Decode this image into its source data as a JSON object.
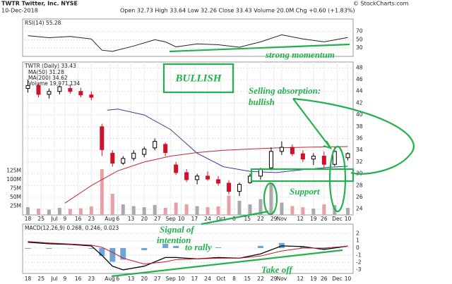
{
  "header": {
    "title": "TWTR Twitter, Inc. NYSE",
    "date": "10-Dec-2018",
    "quote": "Open 32.73 High 33.64 Low 32.26 Close 33.43 Volume 20.0M Chg +0.60 (+1.83%)",
    "credit": "© StockCharts.com"
  },
  "annotations": [
    "BULLISH",
    "Selling absorption:",
    "bullish",
    "strong momentum",
    "Support",
    "Signal of",
    "intention",
    "to rally",
    "Take off"
  ],
  "chart_data": [
    {
      "type": "line",
      "title": "RSI(14) 55.28",
      "color": "#222222",
      "x": [
        0,
        8,
        16,
        24,
        28,
        32,
        40,
        48,
        52,
        56,
        64,
        72,
        80,
        88,
        96,
        104,
        112,
        121
      ],
      "values": [
        60,
        55,
        58,
        52,
        25,
        22,
        35,
        50,
        45,
        33,
        40,
        38,
        32,
        45,
        62,
        52,
        45,
        55.28
      ],
      "xlim": [
        -2,
        123
      ],
      "ylim": [
        10,
        100
      ],
      "yticks": [
        30,
        50,
        70
      ],
      "grid": true
    },
    {
      "type": "candlestick",
      "title": "TWTR (Daily) 33.43",
      "up_color": "#000000",
      "down_color": "#d0112b",
      "x": [
        0,
        4,
        8,
        12,
        16,
        20,
        24,
        28,
        32,
        36,
        40,
        44,
        48,
        52,
        56,
        60,
        64,
        68,
        72,
        76,
        80,
        84,
        88,
        92,
        96,
        100,
        104,
        108,
        112,
        116,
        121
      ],
      "open": [
        44.5,
        45,
        43.5,
        44,
        44.5,
        44,
        43.4,
        38,
        33.5,
        31.8,
        32.6,
        33.3,
        34.4,
        35,
        31.5,
        30.2,
        29,
        29.6,
        29,
        28.4,
        27,
        28.5,
        29.6,
        31,
        33.8,
        34.5,
        33.4,
        32.5,
        33,
        31.6,
        32.73
      ],
      "high": [
        46,
        45.5,
        44.5,
        45,
        45.2,
        44.6,
        44,
        38.5,
        34,
        33,
        34,
        34.6,
        36,
        35.3,
        32,
        30.8,
        30,
        30.4,
        29.6,
        28.9,
        28.5,
        30,
        31,
        34.5,
        35.5,
        35,
        34,
        33.5,
        33.8,
        34.5,
        33.64
      ],
      "low": [
        43.8,
        43,
        42.8,
        43.5,
        43.6,
        43,
        42.5,
        33,
        31.2,
        31.5,
        32.2,
        32.8,
        34,
        33,
        29.8,
        28.6,
        28.2,
        28.8,
        28,
        26.5,
        26.2,
        28.3,
        29,
        30.6,
        33.2,
        33,
        32,
        31.5,
        31,
        31.3,
        32.26
      ],
      "close": [
        45,
        43.5,
        44,
        44.8,
        44,
        43.4,
        43,
        34.1,
        31.8,
        32.6,
        33.5,
        34.2,
        35.5,
        33.6,
        30.2,
        29,
        29.6,
        29.1,
        28.4,
        27,
        28.2,
        29.6,
        30.8,
        33.8,
        34.5,
        33.4,
        32.5,
        33,
        31.6,
        33.8,
        33.43
      ],
      "volume": {
        "name": "Volume 19,971,134",
        "up_color": "#aaaaaa",
        "down_color": "#e8a0a8",
        "values": [
          22,
          18,
          15,
          20,
          17,
          19,
          24,
          130,
          60,
          30,
          25,
          22,
          28,
          20,
          35,
          30,
          25,
          22,
          24,
          55,
          40,
          30,
          45,
          90,
          35,
          25,
          22,
          18,
          30,
          28,
          19.97
        ],
        "ylim": [
          0,
          434
        ],
        "yticks": [
          {
            "value": 25,
            "label": "25M"
          },
          {
            "value": 50,
            "label": "50M"
          },
          {
            "value": 75,
            "label": "75M"
          },
          {
            "value": 100,
            "label": "100M"
          },
          {
            "value": 125,
            "label": "125M"
          }
        ]
      },
      "series": [
        {
          "name": "MA(50) 31.28",
          "color": "#3a3aa0",
          "x": [
            30,
            34,
            44,
            54,
            64,
            74,
            84,
            94,
            104,
            114,
            121
          ],
          "values": [
            40.8,
            41,
            40,
            37.5,
            33.5,
            31.2,
            30.4,
            30.2,
            30.7,
            31.1,
            31.28
          ]
        },
        {
          "name": "MA(200) 34.62",
          "color": "#c0282d",
          "x": [
            14,
            24,
            34,
            44,
            54,
            64,
            74,
            84,
            94,
            104,
            114,
            121
          ],
          "values": [
            25,
            28,
            30.5,
            32,
            33,
            33.6,
            34,
            34.2,
            34.4,
            34.5,
            34.6,
            34.62
          ]
        }
      ],
      "xlim": [
        -2,
        123
      ],
      "ylim": [
        23,
        49
      ],
      "yticks": [
        24,
        26,
        28,
        30,
        32,
        34,
        36,
        38,
        40,
        42,
        44,
        46,
        48
      ],
      "grid": true,
      "xticks": [
        {
          "value": 0,
          "label": "18"
        },
        {
          "value": 5,
          "label": "25"
        },
        {
          "value": 10,
          "label": "Jul"
        },
        {
          "value": 14,
          "label": "9"
        },
        {
          "value": 19,
          "label": "16"
        },
        {
          "value": 24,
          "label": "23"
        },
        {
          "value": 31,
          "label": "Aug"
        },
        {
          "value": 34,
          "label": "6"
        },
        {
          "value": 39,
          "label": "13"
        },
        {
          "value": 44,
          "label": "20"
        },
        {
          "value": 49,
          "label": "27"
        },
        {
          "value": 54,
          "label": "Sep"
        },
        {
          "value": 58,
          "label": "10"
        },
        {
          "value": 63,
          "label": "17"
        },
        {
          "value": 68,
          "label": "24"
        },
        {
          "value": 73,
          "label": "Oct"
        },
        {
          "value": 78,
          "label": "8"
        },
        {
          "value": 83,
          "label": "15"
        },
        {
          "value": 88,
          "label": "22"
        },
        {
          "value": 93,
          "label": "29"
        },
        {
          "value": 96,
          "label": "Nov"
        },
        {
          "value": 103,
          "label": "12"
        },
        {
          "value": 108,
          "label": "19"
        },
        {
          "value": 112,
          "label": "26"
        },
        {
          "value": 117,
          "label": "Dec"
        },
        {
          "value": 121,
          "label": "10"
        }
      ]
    },
    {
      "type": "macd",
      "title": "MACD(12,26,9) 0.268, 0.246, 0.023",
      "x": [
        0,
        8,
        16,
        24,
        28,
        32,
        36,
        44,
        52,
        56,
        64,
        72,
        80,
        88,
        96,
        104,
        112,
        121
      ],
      "series": [
        {
          "name": "MACD",
          "color": "#000000",
          "values": [
            0.8,
            0.6,
            0.5,
            0.3,
            -1,
            -2.5,
            -3,
            -2.5,
            -1.3,
            -1.3,
            -1.5,
            -1.3,
            -1.4,
            -0.8,
            0.3,
            0.2,
            -0.2,
            0.268
          ]
        },
        {
          "name": "Signal",
          "color": "#d0112b",
          "values": [
            0.9,
            0.7,
            0.55,
            0.4,
            0.1,
            -0.6,
            -1.4,
            -2.2,
            -1.9,
            -1.6,
            -1.5,
            -1.4,
            -1.4,
            -1.1,
            -0.4,
            0,
            0,
            0.246
          ]
        }
      ],
      "histogram": {
        "color": "#4a8fc8",
        "values": [
          -0.1,
          -0.1,
          -0.05,
          -0.1,
          -1.1,
          -1.9,
          -1.6,
          -0.3,
          0.6,
          0.3,
          0,
          0.1,
          0,
          0.3,
          0.7,
          0.2,
          -0.2,
          0.023
        ]
      },
      "xlim": [
        -2,
        123
      ],
      "ylim": [
        -3.5,
        3.3
      ],
      "yticks": [
        -3,
        -2,
        -1,
        0,
        1,
        2
      ],
      "grid": true
    }
  ]
}
